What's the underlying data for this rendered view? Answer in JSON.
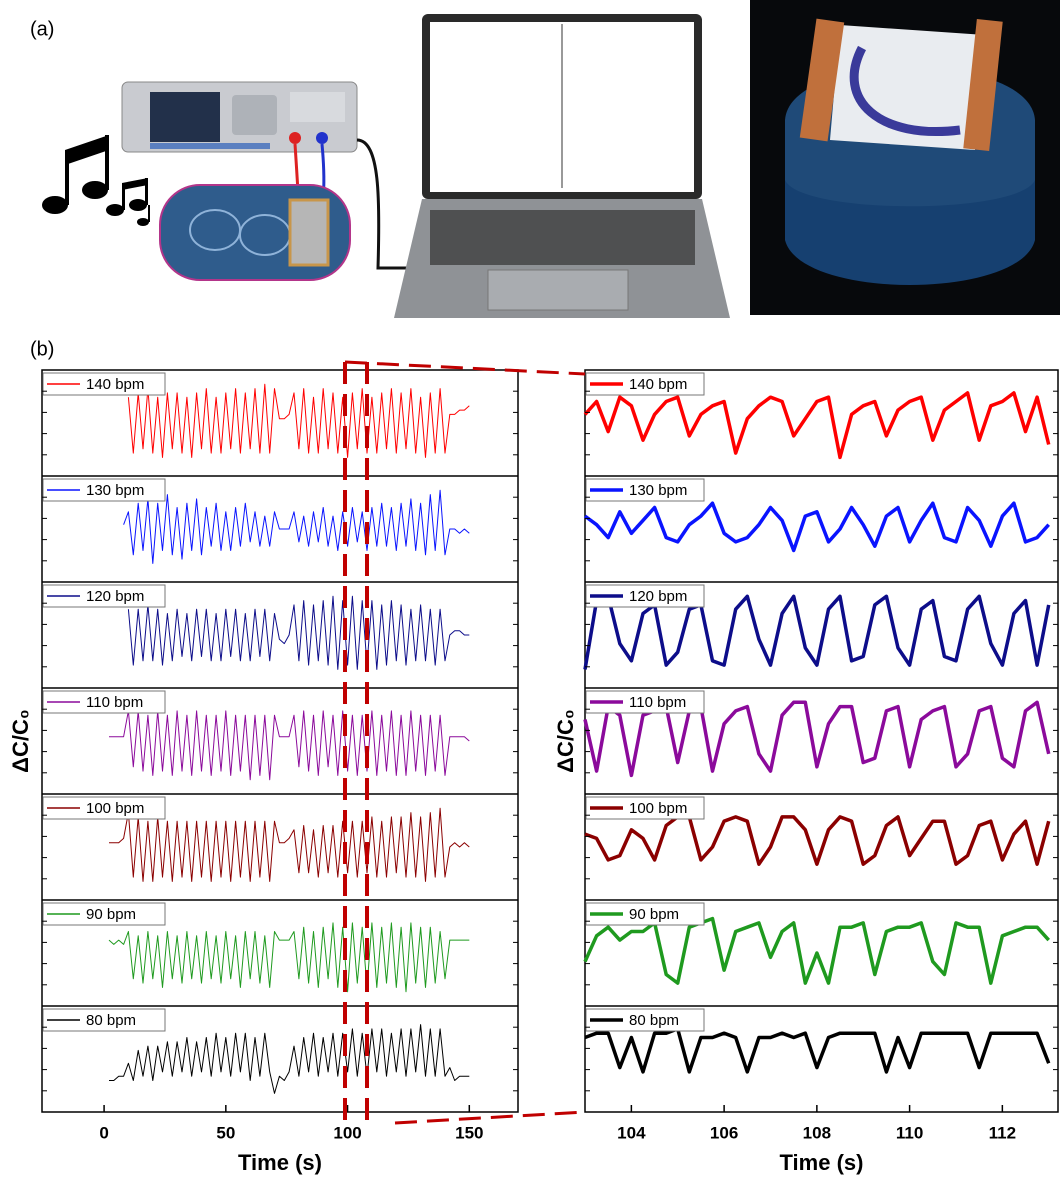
{
  "figure": {
    "labels": [
      "(a)",
      "(b)"
    ]
  },
  "chart_data": [
    {
      "type": "line",
      "xlabel": "Time (s)",
      "ylabel": "ΔC/C₀",
      "xlim": [
        -25.5,
        170
      ],
      "xticks": [
        0,
        50,
        100,
        150
      ],
      "ylim": [
        -1,
        1
      ],
      "line_width": 1,
      "x": [
        0,
        2,
        4,
        6,
        8,
        10,
        12,
        14,
        16,
        18,
        20,
        22,
        24,
        26,
        28,
        30,
        32,
        34,
        36,
        38,
        40,
        42,
        44,
        46,
        48,
        50,
        52,
        54,
        56,
        58,
        60,
        62,
        64,
        66,
        68,
        70,
        72,
        74,
        76,
        78,
        80,
        82,
        84,
        86,
        88,
        90,
        92,
        94,
        96,
        98,
        100,
        102,
        104,
        106,
        108,
        110,
        112,
        114,
        116,
        118,
        120,
        122,
        124,
        126,
        128,
        130,
        132,
        134,
        136,
        138,
        140,
        142,
        144,
        146,
        148,
        150
      ],
      "series": [
        {
          "name": "140 bpm",
          "color": "#ff0000",
          "values": [
            null,
            null,
            null,
            null,
            null,
            0.6,
            -0.7,
            0.7,
            -0.6,
            0.8,
            -0.7,
            0.6,
            -0.8,
            0.7,
            -0.6,
            0.7,
            -0.7,
            0.6,
            -0.8,
            0.7,
            -0.6,
            0.8,
            -0.7,
            0.6,
            -0.7,
            0.7,
            -0.6,
            0.8,
            -0.7,
            0.7,
            -0.6,
            0.8,
            -0.7,
            0.9,
            -0.7,
            0.8,
            0.1,
            0.1,
            0.2,
            0.7,
            -0.6,
            0.8,
            -0.7,
            0.6,
            -0.7,
            0.8,
            -0.6,
            0.7,
            -0.7,
            0.6,
            -0.8,
            0.7,
            -0.6,
            0.8,
            -0.7,
            0.6,
            -0.7,
            0.7,
            -0.6,
            0.8,
            -0.7,
            0.7,
            -0.6,
            0.8,
            -0.7,
            0.6,
            -0.8,
            0.7,
            -0.7,
            0.8,
            -0.7,
            0.2,
            0.2,
            0.3,
            0.3,
            0.4
          ]
        },
        {
          "name": "130 bpm",
          "color": "#0a14ff",
          "values": [
            null,
            null,
            null,
            null,
            0.1,
            0.4,
            -0.6,
            0.6,
            -0.5,
            0.7,
            -0.8,
            0.6,
            -0.5,
            0.8,
            -0.6,
            0.5,
            -0.7,
            0.6,
            -0.5,
            0.7,
            -0.6,
            0.5,
            -0.4,
            0.6,
            -0.5,
            0.4,
            -0.5,
            0.5,
            -0.4,
            0.6,
            -0.3,
            0.4,
            -0.4,
            0.3,
            -0.4,
            0.4,
            0.0,
            0.0,
            0.0,
            0.4,
            -0.3,
            0.3,
            -0.4,
            0.4,
            -0.3,
            0.5,
            -0.4,
            0.3,
            -0.5,
            0.4,
            -0.4,
            0.5,
            -0.3,
            0.4,
            -0.5,
            0.5,
            -0.4,
            0.6,
            -0.4,
            0.5,
            -0.5,
            0.6,
            -0.4,
            0.7,
            -0.5,
            0.6,
            -0.6,
            0.8,
            -0.5,
            0.9,
            -0.6,
            0.0,
            0.0,
            -0.1,
            0.0,
            -0.1
          ]
        },
        {
          "name": "120 bpm",
          "color": "#0d0d8a",
          "values": [
            null,
            null,
            null,
            null,
            null,
            0.6,
            -0.7,
            0.6,
            -0.6,
            0.7,
            -0.6,
            0.6,
            -0.7,
            0.5,
            -0.6,
            0.6,
            -0.5,
            0.5,
            -0.6,
            0.6,
            -0.5,
            0.6,
            -0.6,
            0.5,
            -0.6,
            0.6,
            -0.5,
            0.6,
            -0.6,
            0.5,
            -0.6,
            0.6,
            -0.5,
            0.6,
            -0.6,
            0.5,
            -0.1,
            -0.2,
            0.0,
            0.7,
            -0.6,
            0.8,
            -0.7,
            0.7,
            -0.6,
            0.8,
            -0.7,
            0.9,
            -0.8,
            0.8,
            -0.7,
            0.9,
            -0.8,
            0.8,
            -0.7,
            0.8,
            -0.8,
            0.7,
            -0.7,
            0.8,
            -0.6,
            0.7,
            -0.7,
            0.6,
            -0.6,
            0.7,
            -0.6,
            0.6,
            -0.7,
            0.6,
            -0.6,
            0.0,
            0.1,
            0.1,
            0.0,
            0.0
          ]
        },
        {
          "name": "110 bpm",
          "color": "#8b0a9b",
          "values": [
            null,
            0.1,
            0.1,
            0.1,
            0.1,
            0.7,
            -0.6,
            0.7,
            -0.7,
            0.6,
            -0.8,
            0.7,
            -0.7,
            0.6,
            -0.8,
            0.7,
            -0.7,
            0.6,
            -0.8,
            0.7,
            -0.7,
            0.6,
            -0.8,
            0.6,
            -0.7,
            0.7,
            -0.8,
            0.6,
            -0.7,
            0.6,
            -0.9,
            0.6,
            -0.8,
            0.6,
            -0.9,
            0.6,
            0.1,
            0.1,
            0.1,
            0.6,
            -0.6,
            0.7,
            -0.7,
            0.6,
            -0.8,
            0.7,
            -0.6,
            0.6,
            -0.8,
            0.7,
            -0.7,
            0.6,
            -0.8,
            0.6,
            -0.7,
            0.7,
            -0.8,
            0.6,
            -0.7,
            0.7,
            -0.8,
            0.6,
            -0.8,
            0.7,
            -0.7,
            0.6,
            -0.8,
            0.6,
            -0.7,
            0.6,
            -0.8,
            0.1,
            0.1,
            0.1,
            0.1,
            0.0
          ]
        },
        {
          "name": "100 bpm",
          "color": "#8b0000",
          "values": [
            null,
            0.1,
            0.1,
            0.1,
            0.2,
            0.8,
            -0.7,
            0.7,
            -0.8,
            0.6,
            -0.8,
            0.7,
            -0.7,
            0.6,
            -0.8,
            0.6,
            -0.7,
            0.6,
            -0.8,
            0.6,
            -0.7,
            0.6,
            -0.8,
            0.6,
            -0.7,
            0.6,
            -0.8,
            0.6,
            -0.7,
            0.6,
            -0.8,
            0.6,
            -0.7,
            0.6,
            -0.8,
            0.6,
            0.1,
            0.1,
            0.2,
            0.4,
            -0.6,
            0.5,
            -0.6,
            0.4,
            -0.7,
            0.5,
            -0.6,
            0.5,
            -0.7,
            0.6,
            -0.6,
            0.6,
            -0.7,
            0.6,
            -0.6,
            0.7,
            -0.7,
            0.6,
            -0.7,
            0.7,
            -0.6,
            0.7,
            -0.7,
            0.8,
            -0.7,
            0.7,
            -0.8,
            0.8,
            -0.7,
            0.9,
            -0.7,
            0.0,
            0.1,
            0.0,
            0.1,
            0.0
          ]
        },
        {
          "name": "90 bpm",
          "color": "#1f9a1f",
          "values": [
            null,
            0.3,
            0.2,
            0.3,
            0.2,
            0.5,
            -0.6,
            0.4,
            -0.7,
            0.5,
            -0.6,
            0.4,
            -0.8,
            0.5,
            -0.6,
            0.4,
            -0.7,
            0.5,
            -0.6,
            0.4,
            -0.7,
            0.5,
            -0.6,
            0.4,
            -0.7,
            0.5,
            -0.6,
            0.4,
            -0.8,
            0.5,
            -0.6,
            0.5,
            -0.7,
            0.4,
            -0.8,
            0.5,
            0.3,
            0.3,
            0.3,
            0.5,
            -0.6,
            0.6,
            -0.7,
            0.5,
            -0.8,
            0.6,
            -0.6,
            0.7,
            -0.8,
            0.6,
            -0.9,
            0.7,
            -0.7,
            0.6,
            -0.8,
            0.7,
            -0.8,
            0.6,
            -0.7,
            0.7,
            -0.8,
            0.6,
            -0.9,
            0.7,
            -0.7,
            0.6,
            -0.8,
            0.6,
            -0.7,
            0.5,
            -0.6,
            0.3,
            0.3,
            0.3,
            0.3,
            0.3
          ]
        },
        {
          "name": "80 bpm",
          "color": "#000000",
          "values": [
            null,
            -0.5,
            -0.5,
            -0.4,
            -0.4,
            -0.1,
            -0.5,
            0.2,
            -0.4,
            0.3,
            -0.5,
            0.3,
            -0.3,
            0.4,
            -0.4,
            0.4,
            -0.3,
            0.5,
            -0.4,
            0.4,
            -0.3,
            0.5,
            -0.4,
            0.6,
            -0.3,
            0.5,
            -0.4,
            0.6,
            -0.3,
            0.6,
            -0.5,
            0.5,
            -0.4,
            0.6,
            -0.3,
            -0.8,
            -0.4,
            -0.5,
            -0.3,
            0.3,
            -0.4,
            0.5,
            -0.3,
            0.6,
            -0.4,
            0.5,
            -0.3,
            0.6,
            -0.4,
            0.6,
            -0.3,
            0.7,
            -0.4,
            0.6,
            -0.4,
            0.7,
            -0.3,
            0.7,
            -0.4,
            0.6,
            -0.3,
            0.7,
            -0.4,
            0.7,
            -0.3,
            0.8,
            -0.4,
            0.7,
            -0.4,
            0.7,
            -0.4,
            -0.2,
            -0.5,
            -0.4,
            -0.4,
            -0.4
          ]
        }
      ]
    },
    {
      "type": "line",
      "xlabel": "Time (s)",
      "ylabel": "ΔC/C₀",
      "xlim": [
        103,
        113.2
      ],
      "xticks": [
        104,
        106,
        108,
        110,
        112
      ],
      "ylim": [
        -1,
        1
      ],
      "line_width": 3.5,
      "x": [
        103,
        103.25,
        103.5,
        103.75,
        104,
        104.25,
        104.5,
        104.75,
        105,
        105.25,
        105.5,
        105.75,
        106,
        106.25,
        106.5,
        106.75,
        107,
        107.25,
        107.5,
        107.75,
        108,
        108.25,
        108.5,
        108.75,
        109,
        109.25,
        109.5,
        109.75,
        110,
        110.25,
        110.5,
        110.75,
        111,
        111.25,
        111.5,
        111.75,
        112,
        112.25,
        112.5,
        112.75,
        113
      ],
      "series": [
        {
          "name": "140 bpm",
          "color": "#ff0000",
          "values": [
            0.2,
            0.5,
            -0.2,
            0.6,
            0.4,
            -0.4,
            0.2,
            0.5,
            0.6,
            -0.3,
            0.2,
            0.4,
            0.5,
            -0.7,
            0.1,
            0.4,
            0.6,
            0.5,
            -0.3,
            0.1,
            0.5,
            0.6,
            -0.8,
            0.2,
            0.4,
            0.5,
            -0.3,
            0.3,
            0.5,
            0.6,
            -0.4,
            0.3,
            0.5,
            0.7,
            -0.4,
            0.4,
            0.5,
            0.7,
            -0.2,
            0.6,
            -0.5
          ]
        },
        {
          "name": "130 bpm",
          "color": "#0a14ff",
          "values": [
            0.3,
            0.1,
            -0.2,
            0.4,
            -0.1,
            0.2,
            0.5,
            -0.2,
            -0.3,
            0.1,
            0.3,
            0.6,
            -0.1,
            -0.3,
            -0.2,
            0.1,
            0.5,
            0.2,
            -0.5,
            0.3,
            0.4,
            -0.3,
            0.0,
            0.5,
            0.1,
            -0.4,
            0.3,
            0.5,
            -0.3,
            0.2,
            0.6,
            -0.2,
            -0.3,
            0.5,
            0.2,
            -0.4,
            0.3,
            0.6,
            -0.3,
            -0.2,
            0.1
          ]
        },
        {
          "name": "120 bpm",
          "color": "#0d0d8a",
          "values": [
            -0.8,
            0.8,
            0.9,
            -0.2,
            -0.6,
            0.5,
            0.7,
            -0.7,
            -0.4,
            0.6,
            0.7,
            -0.6,
            -0.7,
            0.6,
            0.9,
            -0.1,
            -0.7,
            0.5,
            0.9,
            -0.3,
            -0.7,
            0.6,
            0.9,
            -0.6,
            -0.5,
            0.7,
            0.9,
            -0.3,
            -0.7,
            0.6,
            0.8,
            -0.5,
            -0.6,
            0.6,
            0.9,
            -0.2,
            -0.7,
            0.5,
            0.8,
            -0.7,
            0.7
          ]
        },
        {
          "name": "110 bpm",
          "color": "#8b0a9b",
          "values": [
            0.5,
            -0.7,
            0.8,
            0.6,
            -0.8,
            0.6,
            0.7,
            0.8,
            -0.5,
            0.7,
            0.8,
            -0.7,
            0.4,
            0.7,
            0.8,
            -0.3,
            -0.7,
            0.6,
            0.9,
            0.9,
            -0.6,
            0.4,
            0.8,
            0.8,
            -0.5,
            -0.4,
            0.7,
            0.8,
            -0.6,
            0.5,
            0.7,
            0.8,
            -0.6,
            -0.3,
            0.7,
            0.8,
            -0.4,
            -0.6,
            0.7,
            0.9,
            -0.3
          ]
        },
        {
          "name": "100 bpm",
          "color": "#8b0000",
          "values": [
            0.3,
            0.2,
            -0.3,
            -0.2,
            0.4,
            0.2,
            -0.3,
            0.5,
            0.7,
            0.7,
            -0.3,
            0.0,
            0.6,
            0.7,
            0.6,
            -0.4,
            0.0,
            0.7,
            0.7,
            0.4,
            -0.4,
            0.4,
            0.7,
            0.6,
            -0.4,
            -0.2,
            0.5,
            0.7,
            -0.2,
            0.2,
            0.6,
            0.6,
            -0.4,
            -0.2,
            0.5,
            0.6,
            -0.3,
            0.3,
            0.6,
            -0.4,
            0.6
          ]
        },
        {
          "name": "90 bpm",
          "color": "#1f9a1f",
          "values": [
            -0.2,
            0.4,
            0.6,
            0.3,
            0.5,
            0.5,
            0.7,
            -0.5,
            -0.7,
            0.6,
            0.7,
            0.8,
            -0.4,
            0.5,
            0.6,
            0.7,
            -0.1,
            0.5,
            0.7,
            -0.7,
            0.0,
            -0.7,
            0.6,
            0.6,
            0.7,
            -0.5,
            0.5,
            0.6,
            0.6,
            0.7,
            -0.2,
            -0.5,
            0.7,
            0.6,
            0.6,
            -0.7,
            0.4,
            0.5,
            0.6,
            0.6,
            0.3
          ]
        },
        {
          "name": "80 bpm",
          "color": "#000000",
          "values": [
            0.5,
            0.6,
            0.6,
            -0.2,
            0.5,
            -0.3,
            0.6,
            0.6,
            0.7,
            -0.3,
            0.5,
            0.5,
            0.6,
            0.5,
            -0.3,
            0.5,
            0.5,
            0.6,
            0.5,
            0.6,
            -0.2,
            0.5,
            0.6,
            0.6,
            0.6,
            0.6,
            -0.3,
            0.5,
            -0.2,
            0.6,
            0.6,
            0.6,
            0.6,
            0.6,
            -0.2,
            0.6,
            0.6,
            0.6,
            0.6,
            0.6,
            -0.1
          ]
        }
      ]
    }
  ]
}
